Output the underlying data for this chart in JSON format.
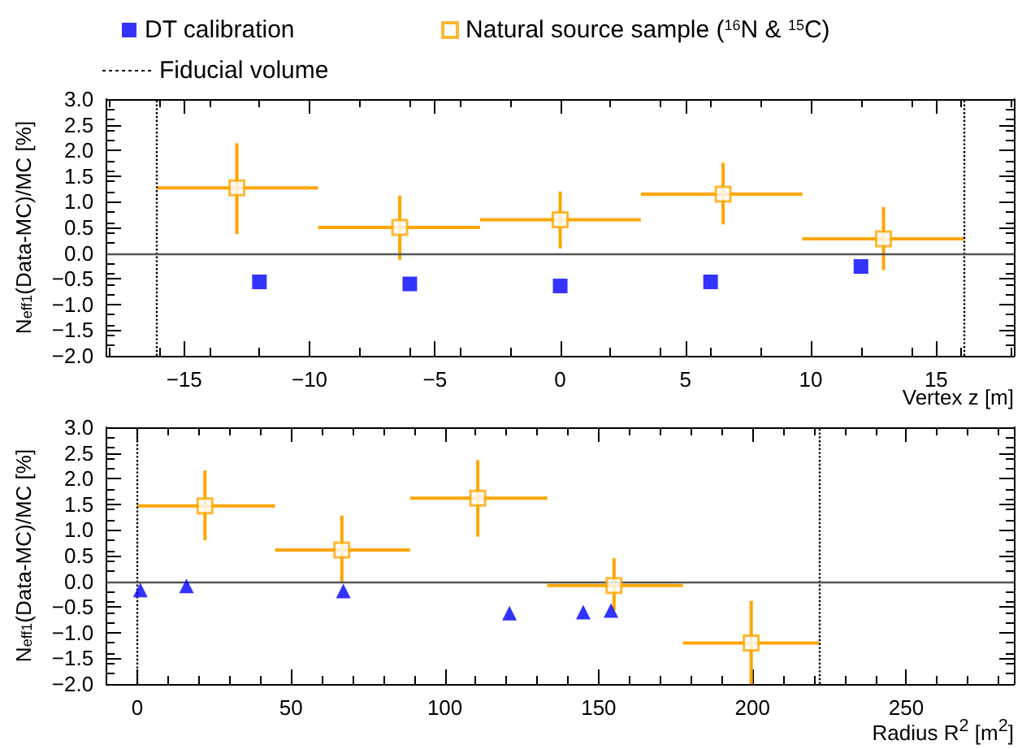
{
  "chart_data": [
    {
      "type": "scatter",
      "xlabel": "Vertex z [m]",
      "ylabel": "N$_{eff1}$(Data-MC)/MC [%]",
      "legend": "top",
      "grid": false,
      "xlim": [
        -18.1,
        18.1
      ],
      "xticks": [
        {
          "value": -15,
          "label": "−15"
        },
        {
          "value": -10,
          "label": "−10"
        },
        {
          "value": -5,
          "label": "−5"
        },
        0,
        5,
        10,
        15
      ],
      "ylim": [
        -2,
        3
      ],
      "yticks": [
        {
          "value": -2,
          "label": "−2.0"
        },
        {
          "value": -1.5,
          "label": "−1.5"
        },
        {
          "value": -1,
          "label": "−1.0"
        },
        {
          "value": -0.5,
          "label": "−0.5"
        },
        {
          "value": 0,
          "label": "0.0"
        },
        {
          "value": 0.5,
          "label": "0.5"
        },
        {
          "value": 1,
          "label": "1.0"
        },
        {
          "value": 1.5,
          "label": "1.5"
        },
        {
          "value": 2,
          "label": "2.0"
        },
        {
          "value": 2.5,
          "label": "2.5"
        },
        {
          "value": 3,
          "label": "3.0"
        }
      ],
      "series": [
        {
          "name": "DT calibration",
          "color": "#0000ff",
          "marker": "square",
          "x": [
            -12,
            -6,
            0,
            6,
            12
          ],
          "values": [
            -0.56,
            -0.6,
            -0.64,
            -0.56,
            -0.26
          ]
        },
        {
          "name": "Natural source sample ($^{16}$N & $^{15}$C)",
          "color": "#ffa500",
          "marker": "square",
          "x": [
            -12.9,
            -6.4,
            0,
            6.5,
            12.9
          ],
          "values": [
            1.27,
            0.5,
            0.65,
            1.15,
            0.28
          ],
          "errors": [
            [
              0.37,
              2.14
            ],
            [
              -0.13,
              1.12
            ],
            [
              0.09,
              1.2
            ],
            [
              0.56,
              1.76
            ],
            [
              -0.33,
              0.9
            ]
          ],
          "xerrors": [
            [
              -16.1,
              -9.66
            ],
            [
              -9.66,
              -3.2
            ],
            [
              -3.2,
              3.22
            ],
            [
              3.22,
              9.66
            ],
            [
              9.66,
              16.1
            ]
          ]
        }
      ],
      "ref_lines": [
        {
          "axis": "x",
          "value": -16.1,
          "label": "Fiducial volume",
          "line_style": "dotted",
          "color": "#000000"
        },
        {
          "axis": "x",
          "value": 16.1,
          "label": null,
          "line_style": "dotted",
          "color": "#000000"
        },
        {
          "axis": "y",
          "value": 0,
          "label": null,
          "line_style": "solid",
          "color": "#555555"
        }
      ]
    },
    {
      "type": "scatter",
      "xlabel": "Radius R$^{2}$ [m$^{2}$]",
      "ylabel": "N$_{eff1}$(Data-MC)/MC [%]",
      "legend": false,
      "grid": false,
      "xlim": [
        -10,
        285
      ],
      "xticks": [
        0,
        50,
        100,
        150,
        200,
        250
      ],
      "ylim": [
        -2,
        3
      ],
      "yticks": [
        {
          "value": -2,
          "label": "−2.0"
        },
        {
          "value": -1.5,
          "label": "−1.5"
        },
        {
          "value": -1,
          "label": "−1.0"
        },
        {
          "value": -0.5,
          "label": "−0.5"
        },
        {
          "value": 0,
          "label": "0.0"
        },
        {
          "value": 0.5,
          "label": "0.5"
        },
        {
          "value": 1,
          "label": "1.0"
        },
        {
          "value": 1.5,
          "label": "1.5"
        },
        {
          "value": 2,
          "label": "2.0"
        },
        {
          "value": 2.5,
          "label": "2.5"
        },
        {
          "value": 3,
          "label": "3.0"
        }
      ],
      "series": [
        {
          "color": "#0000ff",
          "marker": "triangle",
          "x": [
            1,
            16,
            67,
            121,
            145,
            154
          ],
          "values": [
            -0.17,
            -0.09,
            -0.19,
            -0.62,
            -0.6,
            -0.57
          ]
        },
        {
          "color": "#ffa500",
          "marker": "square",
          "x": [
            22,
            66.5,
            110.7,
            155,
            199.6
          ],
          "values": [
            1.47,
            0.61,
            1.62,
            -0.08,
            -1.2
          ],
          "errors": [
            [
              0.8,
              2.16
            ],
            [
              -0.03,
              1.28
            ],
            [
              0.87,
              2.36
            ],
            [
              -0.57,
              0.45
            ],
            [
              -2,
              -0.38
            ]
          ],
          "xerrors": [
            [
              0,
              44.8
            ],
            [
              44.8,
              88.7
            ],
            [
              88.7,
              133.3
            ],
            [
              133.3,
              177.4
            ],
            [
              177.4,
              221.6
            ]
          ]
        }
      ],
      "ref_lines": [
        {
          "axis": "x",
          "value": 0,
          "label": null,
          "line_style": "dotted",
          "color": "#000000"
        },
        {
          "axis": "x",
          "value": 221.6,
          "label": null,
          "line_style": "dotted",
          "color": "#000000"
        },
        {
          "axis": "y",
          "value": 0,
          "label": null,
          "line_style": "solid",
          "color": "#555555"
        }
      ]
    }
  ]
}
